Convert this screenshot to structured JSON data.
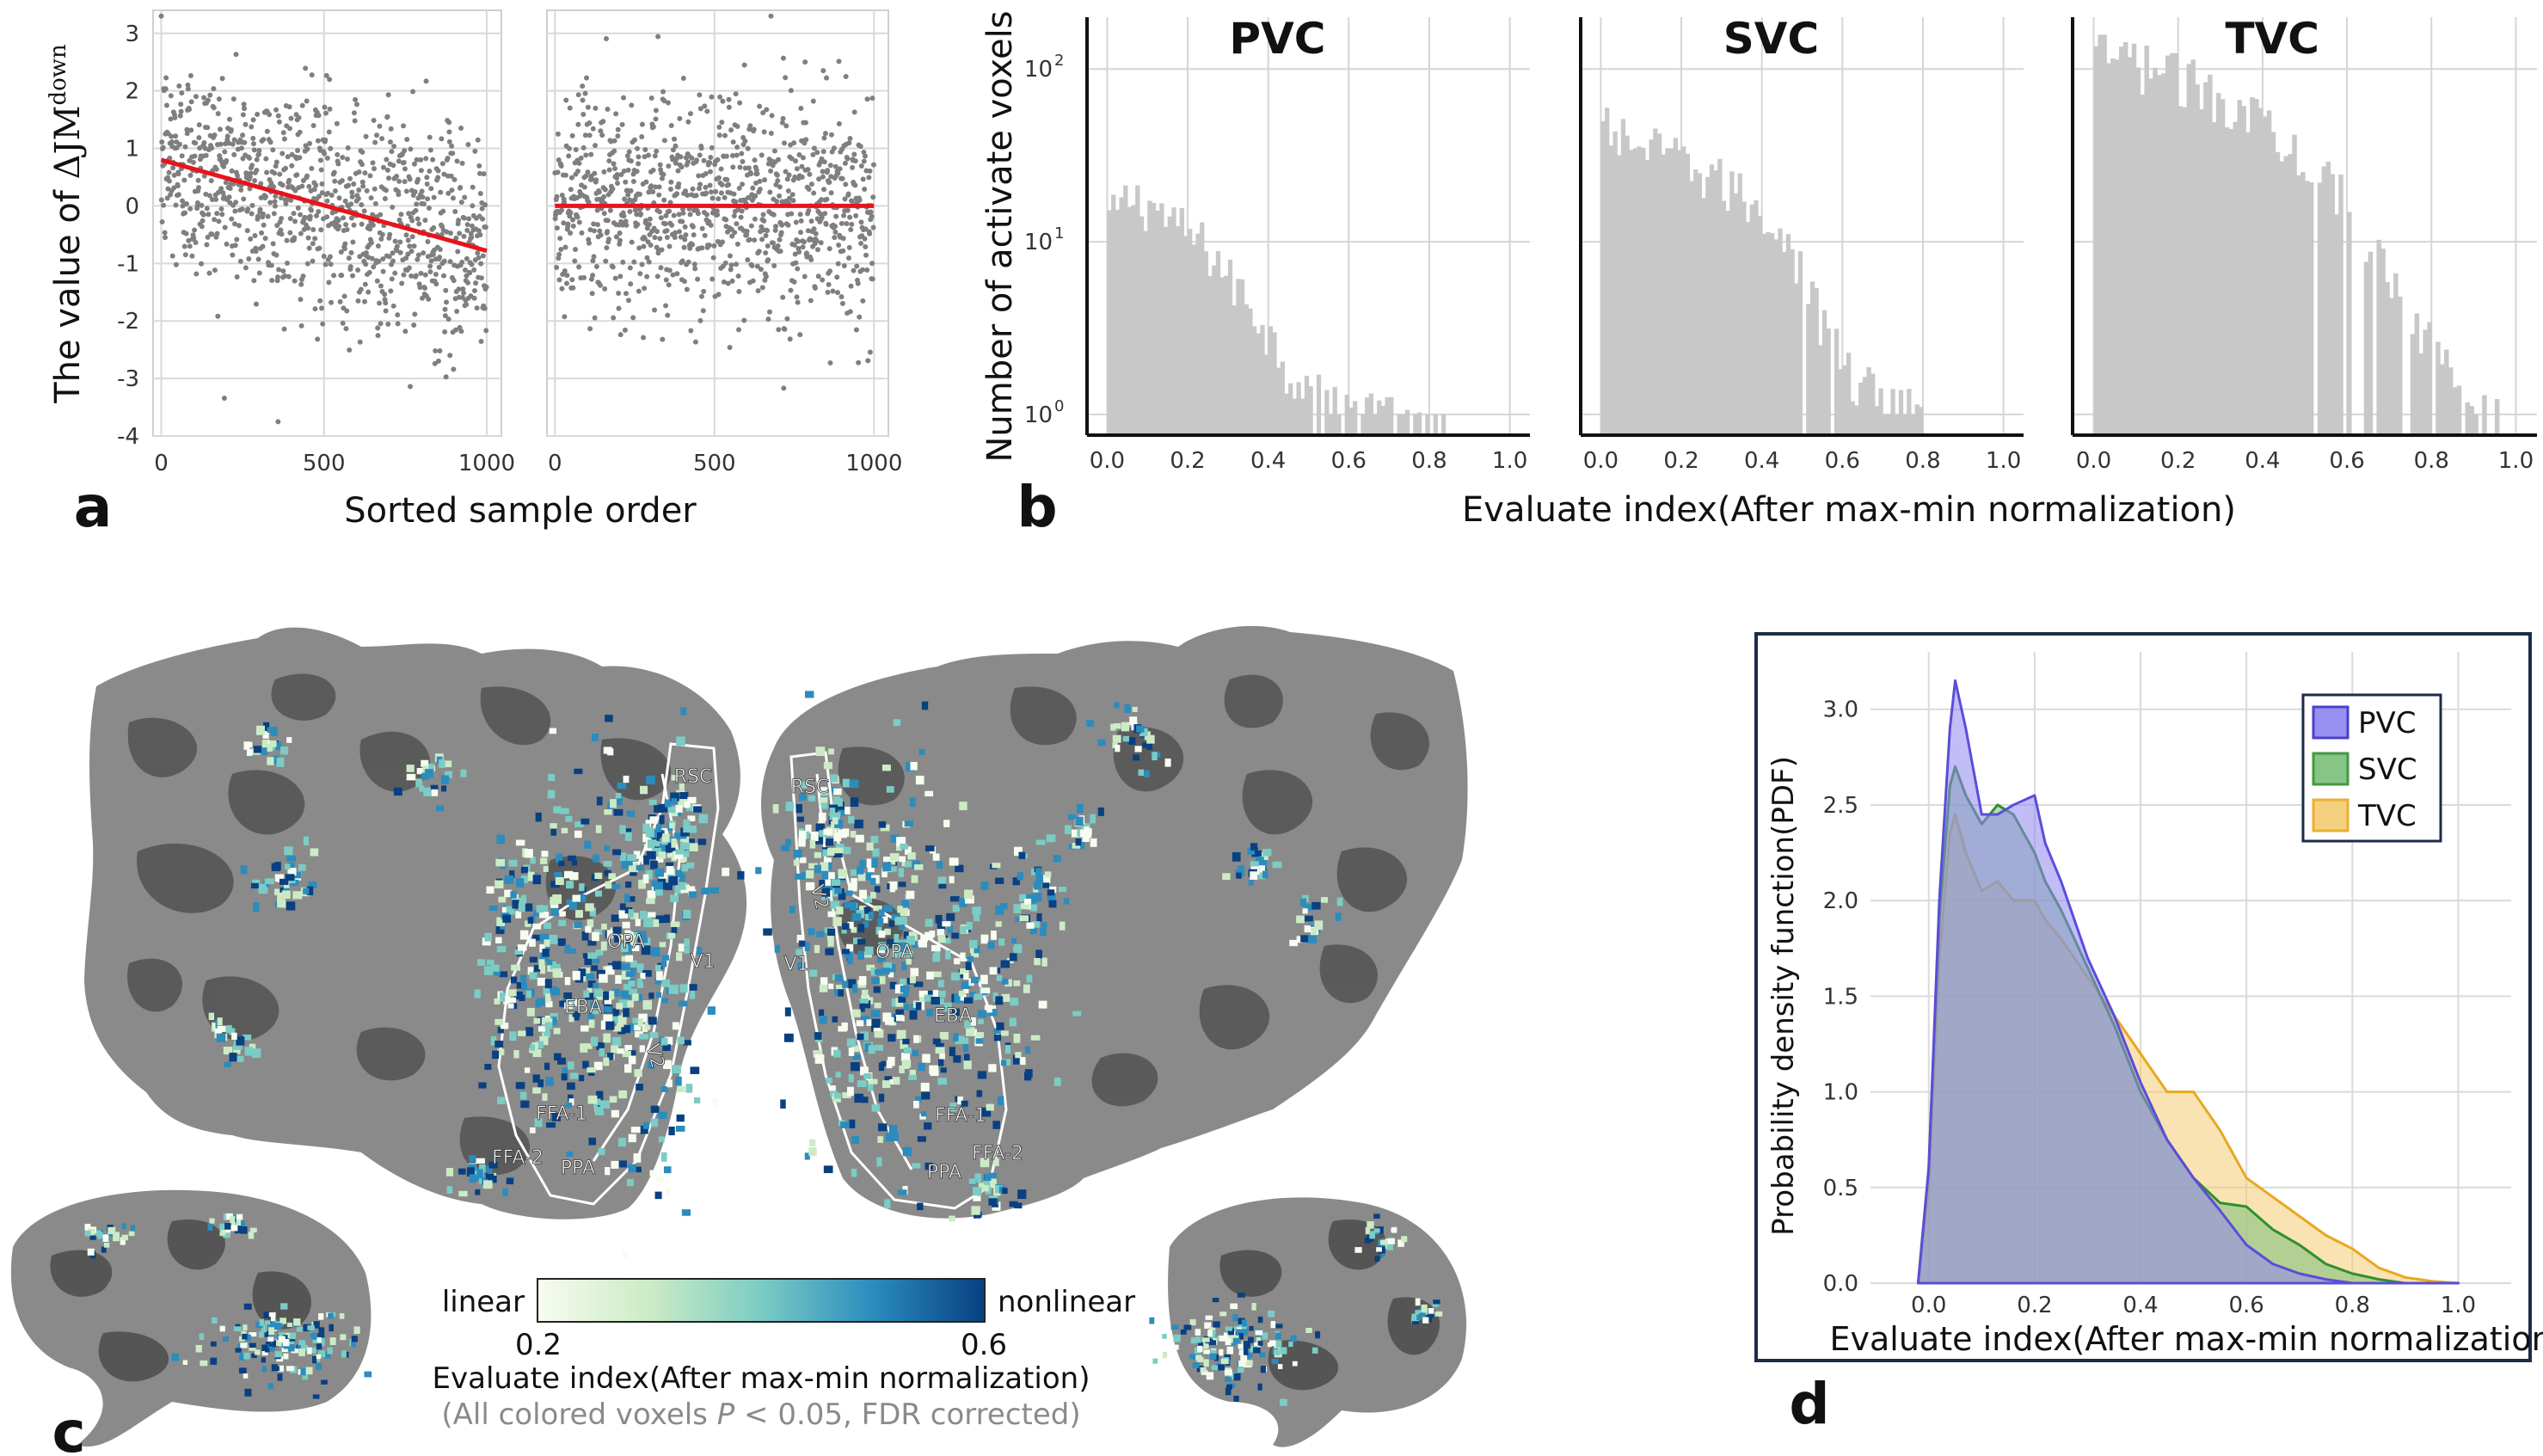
{
  "panel_labels": {
    "a": "a",
    "b": "b",
    "c": "c",
    "d": "d"
  },
  "chart_data": [
    {
      "id": "a-left",
      "type": "scatter",
      "title": "",
      "ylabel": "The value of ΔJM^down",
      "ylabel_prefix": "The value of",
      "ylabel_symbol": "ΔJM",
      "ylabel_superscript": "down",
      "xlabel": "Sorted sample order",
      "xlim": [
        -25,
        1045
      ],
      "ylim": [
        -4,
        3.4
      ],
      "x_ticks": [
        0,
        500,
        1000
      ],
      "y_ticks": [
        3,
        2,
        1,
        0,
        -1,
        -2,
        -3,
        -4
      ],
      "n_points": 1000,
      "regression_line": {
        "x": [
          0,
          1000
        ],
        "y": [
          0.8,
          -0.78
        ],
        "color": "#e8141c"
      },
      "point_color": "#7f7f7f"
    },
    {
      "id": "a-right",
      "type": "scatter",
      "xlim": [
        -25,
        1045
      ],
      "ylim": [
        -4,
        3.4
      ],
      "x_ticks": [
        0,
        500,
        1000
      ],
      "n_points": 1000,
      "regression_line": {
        "x": [
          0,
          1000
        ],
        "y": [
          0.0,
          0.0
        ],
        "color": "#e8141c"
      },
      "point_color": "#7f7f7f"
    },
    {
      "id": "b",
      "type": "bar",
      "subtype": "histogram-log",
      "ylabel": "Number of activate voxels",
      "xlabel": "Evaluate index(After max-min normalization)",
      "x_ticks": [
        0.0,
        0.2,
        0.4,
        0.6,
        0.8,
        1.0
      ],
      "y_ticks": [
        "10^0",
        "10^1",
        "10^2"
      ],
      "y_tick_base": "10",
      "y_tick_exps": [
        "0",
        "1",
        "2"
      ],
      "xlim": [
        -0.05,
        1.05
      ],
      "ylim_log10": [
        -0.12,
        2.3
      ],
      "bar_color": "#c8c8c8",
      "series": [
        {
          "name": "PVC",
          "bin_centers": [
            0.01,
            0.05,
            0.1,
            0.15,
            0.2,
            0.25,
            0.3,
            0.35,
            0.4,
            0.45,
            0.5,
            0.55,
            0.6,
            0.65,
            0.7,
            0.75,
            0.8,
            0.85
          ],
          "counts": [
            14,
            18,
            17,
            13,
            11,
            9,
            6,
            4.5,
            2.8,
            1.8,
            1.5,
            1.3,
            1.1,
            1.0,
            1.0,
            1.0,
            1.0,
            1.0
          ]
        },
        {
          "name": "SVC",
          "bin_centers": [
            0.01,
            0.05,
            0.1,
            0.15,
            0.2,
            0.25,
            0.3,
            0.35,
            0.4,
            0.45,
            0.5,
            0.55,
            0.6,
            0.65,
            0.7,
            0.75,
            0.8
          ],
          "counts": [
            45,
            40,
            36,
            32,
            29,
            25,
            22,
            18,
            15,
            11,
            6,
            3,
            2,
            1.5,
            1.3,
            1.1,
            1.0
          ]
        },
        {
          "name": "TVC",
          "bin_centers": [
            0.01,
            0.05,
            0.1,
            0.15,
            0.2,
            0.25,
            0.3,
            0.35,
            0.4,
            0.45,
            0.5,
            0.55,
            0.6,
            0.65,
            0.7,
            0.75,
            0.8,
            0.85,
            0.9,
            0.95
          ],
          "counts": [
            120,
            115,
            110,
            100,
            90,
            80,
            70,
            62,
            52,
            42,
            32,
            24,
            16,
            10,
            6,
            4,
            2.5,
            1.8,
            1.4,
            1.2
          ]
        }
      ]
    },
    {
      "id": "d",
      "type": "area",
      "ylabel": "Probability density function(PDF)",
      "xlabel": "Evaluate index(After max-min normalization)",
      "xlim": [
        -0.11,
        1.1
      ],
      "ylim": [
        0,
        3.3
      ],
      "x_ticks": [
        0.0,
        0.2,
        0.4,
        0.6,
        0.8,
        1.0
      ],
      "y_ticks": [
        0.0,
        0.5,
        1.0,
        1.5,
        2.0,
        2.5,
        3.0
      ],
      "legend": [
        "PVC",
        "SVC",
        "TVC"
      ],
      "legend_position": "top-right",
      "x": [
        -0.02,
        0.0,
        0.02,
        0.04,
        0.05,
        0.07,
        0.1,
        0.13,
        0.16,
        0.2,
        0.22,
        0.25,
        0.3,
        0.35,
        0.4,
        0.45,
        0.5,
        0.55,
        0.6,
        0.65,
        0.7,
        0.75,
        0.8,
        0.85,
        0.9,
        0.95,
        1.0
      ],
      "series": [
        {
          "name": "PVC",
          "color": "#5b4dd8",
          "fill": "#8f86f0",
          "values": [
            0.0,
            0.6,
            2.0,
            2.9,
            3.15,
            2.9,
            2.45,
            2.45,
            2.5,
            2.55,
            2.3,
            2.1,
            1.7,
            1.4,
            1.05,
            0.75,
            0.55,
            0.38,
            0.2,
            0.1,
            0.05,
            0.02,
            0.0,
            0.0,
            0.0,
            0.0,
            0.0
          ]
        },
        {
          "name": "SVC",
          "color": "#2f8f2f",
          "fill": "#7bbf7b",
          "values": [
            0.0,
            0.6,
            1.9,
            2.6,
            2.7,
            2.55,
            2.4,
            2.5,
            2.45,
            2.25,
            2.1,
            1.95,
            1.65,
            1.35,
            1.0,
            0.75,
            0.55,
            0.42,
            0.4,
            0.28,
            0.2,
            0.1,
            0.05,
            0.02,
            0.0,
            0.0,
            0.0
          ]
        },
        {
          "name": "TVC",
          "color": "#e8a720",
          "fill": "#f4cc72",
          "values": [
            0.0,
            0.5,
            1.7,
            2.35,
            2.45,
            2.25,
            2.05,
            2.1,
            2.0,
            2.0,
            1.9,
            1.8,
            1.6,
            1.4,
            1.2,
            1.0,
            1.0,
            0.8,
            0.55,
            0.45,
            0.35,
            0.25,
            0.18,
            0.08,
            0.03,
            0.01,
            0.0
          ]
        }
      ]
    }
  ],
  "c_brain": {
    "roi_labels": [
      "RSC",
      "OPA",
      "EBA",
      "V1",
      "V2",
      "FFA-1",
      "FFA-2",
      "PPA",
      "RSC",
      "V2",
      "V1",
      "OPA",
      "EBA",
      "FFA-1",
      "FFA-2",
      "PPA"
    ],
    "colorbar": {
      "left_label": "linear",
      "right_label": "nonlinear",
      "min_label": "0.2",
      "max_label": "0.6",
      "title": "Evaluate index(After max-min normalization)",
      "note_prefix": "(All colored voxels ",
      "note_p": "P",
      "note_suffix": " < 0.05, FDR corrected)",
      "colors": [
        "#f7fcf0",
        "#ccebc5",
        "#7bccc4",
        "#2b8cbe",
        "#084081"
      ]
    }
  }
}
